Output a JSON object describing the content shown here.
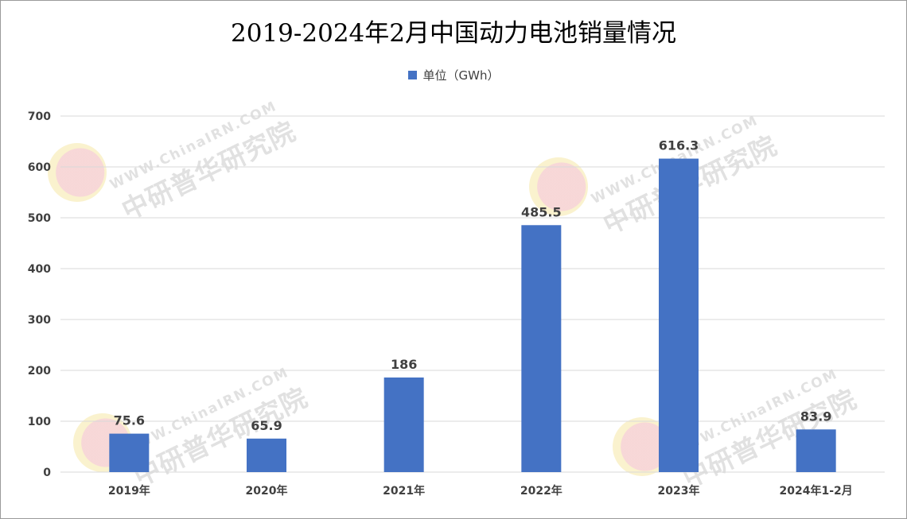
{
  "chart_data": {
    "type": "bar",
    "title": "2019-2024年2月中国动力电池销量情况",
    "categories": [
      "2019年",
      "2020年",
      "2021年",
      "2022年",
      "2023年",
      "2024年1-2月"
    ],
    "series": [
      {
        "name": "单位（GWh）",
        "values": [
          75.6,
          65.9,
          186,
          485.5,
          616.3,
          83.9
        ],
        "color": "#4472c4"
      }
    ],
    "data_labels": [
      "75.6",
      "65.9",
      "186",
      "485.5",
      "616.3",
      "83.9"
    ],
    "ylim": [
      0,
      700
    ],
    "yticks": [
      0,
      100,
      200,
      300,
      400,
      500,
      600,
      700
    ],
    "xlabel": "",
    "ylabel": "",
    "grid": true,
    "legend_position": "top-center"
  },
  "watermark": {
    "text": "中研普华研究院",
    "url": "WWW.ChinaIRN.COM",
    "logo": "CIRN"
  },
  "colors": {
    "bar": "#4472c4",
    "grid": "#d9d9d9",
    "text": "#404040"
  }
}
